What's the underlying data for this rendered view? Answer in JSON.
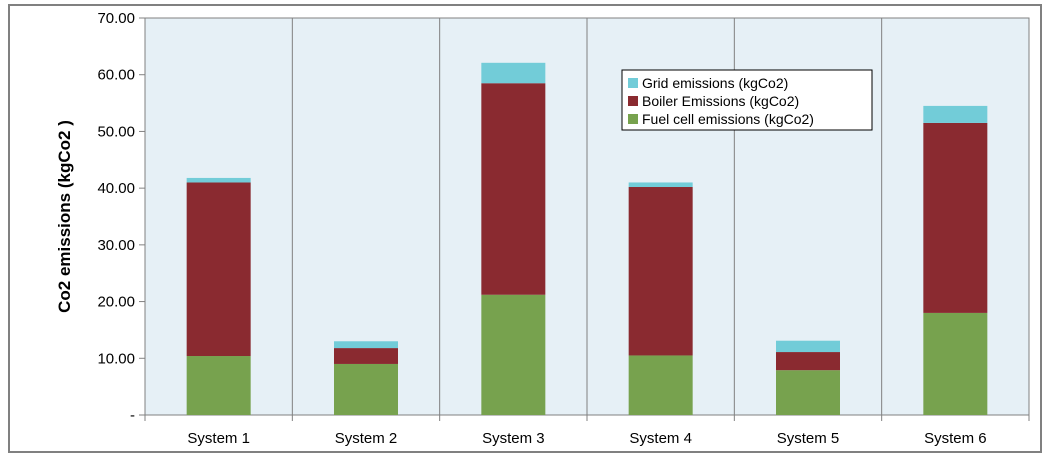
{
  "chart_data": {
    "type": "bar",
    "stacked": true,
    "title": "",
    "xlabel": "",
    "ylabel": "Co2 emissions (kgCo2 )",
    "categories": [
      "System 1",
      "System 2",
      "System 3",
      "System 4",
      "System 5",
      "System 6"
    ],
    "ylim": [
      0,
      70
    ],
    "yticks": [
      0,
      10,
      20,
      30,
      40,
      50,
      60,
      70
    ],
    "ytick_labels": [
      "-",
      "10.00",
      "20.00",
      "30.00",
      "40.00",
      "50.00",
      "60.00",
      "70.00"
    ],
    "grid": true,
    "legend_position": "top-right",
    "series": [
      {
        "name": "Fuel cell emissions (kgCo2)",
        "color": "#77A24E",
        "values": [
          10.4,
          9.0,
          21.2,
          10.5,
          7.9,
          18.0
        ]
      },
      {
        "name": "Boiler Emissions (kgCo2)",
        "color": "#8A2A30",
        "values": [
          30.6,
          2.8,
          37.3,
          29.7,
          3.2,
          33.5
        ]
      },
      {
        "name": "Grid emissions (kgCo2)",
        "color": "#72CCD8",
        "values": [
          0.8,
          1.2,
          3.6,
          0.8,
          2.0,
          3.0
        ]
      }
    ],
    "legend_order": [
      2,
      1,
      0
    ],
    "colors": {
      "plot_background": "#E6F0F6",
      "grid": "#808080",
      "axis": "#808080"
    }
  }
}
